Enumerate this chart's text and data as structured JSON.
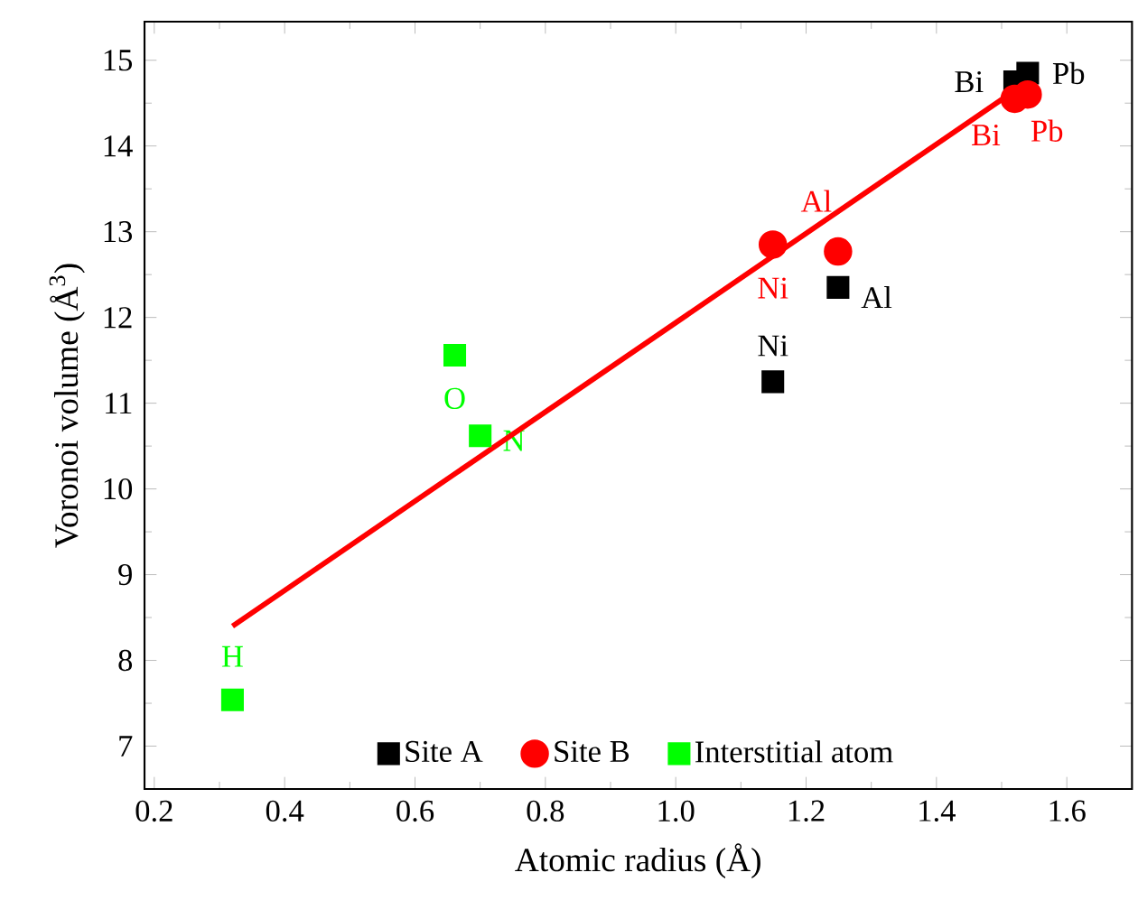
{
  "chart_data": {
    "type": "scatter",
    "xlabel": "Atomic radius (Å)",
    "ylabel": "Voronoi volume (Å$^{3}$)",
    "xlim": [
      0.185,
      1.7
    ],
    "ylim": [
      6.5,
      15.45
    ],
    "xticks": [
      0.2,
      0.4,
      0.6,
      0.8,
      {
        "value": 1.0,
        "label": "1.0"
      },
      1.2,
      1.4,
      1.6
    ],
    "yticks": [
      7,
      8,
      9,
      10,
      11,
      12,
      13,
      14,
      15
    ],
    "grid": false,
    "legend": "bottom",
    "series": [
      {
        "name": "Site A",
        "color": "#000000",
        "marker": "square",
        "x": [
          1.52,
          1.54,
          1.249,
          1.149
        ],
        "values": [
          14.75,
          14.85,
          12.35,
          11.25
        ],
        "value_labels": [
          "Bi",
          "Pb",
          "Al",
          "Ni"
        ]
      },
      {
        "name": "Site B",
        "color": "#ff0000",
        "marker": "circle",
        "x": [
          1.52,
          1.54,
          1.249,
          1.149
        ],
        "values": [
          14.55,
          14.6,
          12.77,
          12.85
        ],
        "value_labels": [
          "Bi",
          "Pb",
          "Al",
          "Ni"
        ]
      },
      {
        "name": "Interstitial atom",
        "color": "#00ff00",
        "marker": "square",
        "x": [
          0.661,
          0.7,
          0.32
        ],
        "values": [
          11.56,
          10.62,
          7.54
        ],
        "value_labels": [
          "O",
          "N",
          "H"
        ]
      },
      {
        "type": "line",
        "color": "#ff0000",
        "x": [
          0.32,
          1.54
        ],
        "values": [
          8.4,
          14.75
        ]
      }
    ]
  }
}
